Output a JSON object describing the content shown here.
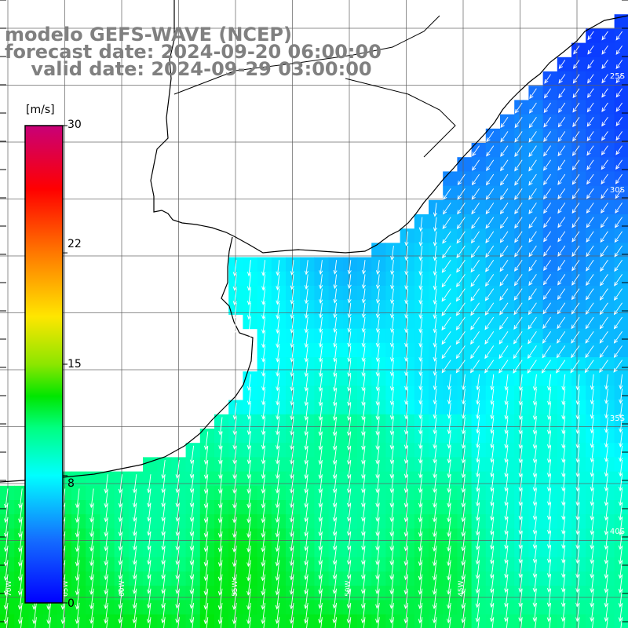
{
  "title": {
    "model": "modelo GEFS-WAVE (NCEP)",
    "forecast": "forecast date: 2024-09-20 06:00:00",
    "valid": "    valid date: 2024-09-29 03:00:00"
  },
  "colorbar": {
    "unit": "[m/s]",
    "ticks": [
      {
        "value": 30,
        "label": "30"
      },
      {
        "value": 22,
        "label": "22"
      },
      {
        "value": 15,
        "label": "15"
      },
      {
        "value": 8,
        "label": "8"
      },
      {
        "value": 0,
        "label": "0"
      }
    ],
    "min": 0,
    "max": 30
  },
  "map": {
    "lon_range": [
      -70,
      -40
    ],
    "lat_range": [
      -45,
      -20
    ],
    "lat_labels": [
      {
        "lat": -25,
        "label": "25S"
      },
      {
        "lat": -30,
        "label": "30S"
      },
      {
        "lat": -35,
        "label": "35S"
      },
      {
        "lat": -40,
        "label": "40S"
      }
    ],
    "lon_labels": [
      {
        "lon": -70,
        "label": "70W"
      },
      {
        "lon": -65,
        "label": "65W"
      },
      {
        "lon": -60,
        "label": "60W"
      },
      {
        "lon": -55,
        "label": "55W"
      },
      {
        "lon": -50,
        "label": "50W"
      },
      {
        "lon": -45,
        "label": "45W"
      }
    ],
    "colors": {
      "land": "#ffffff",
      "grid": "#606060",
      "coast": "#000000",
      "arrows": "#ffffff",
      "title_text": "#808080"
    }
  }
}
